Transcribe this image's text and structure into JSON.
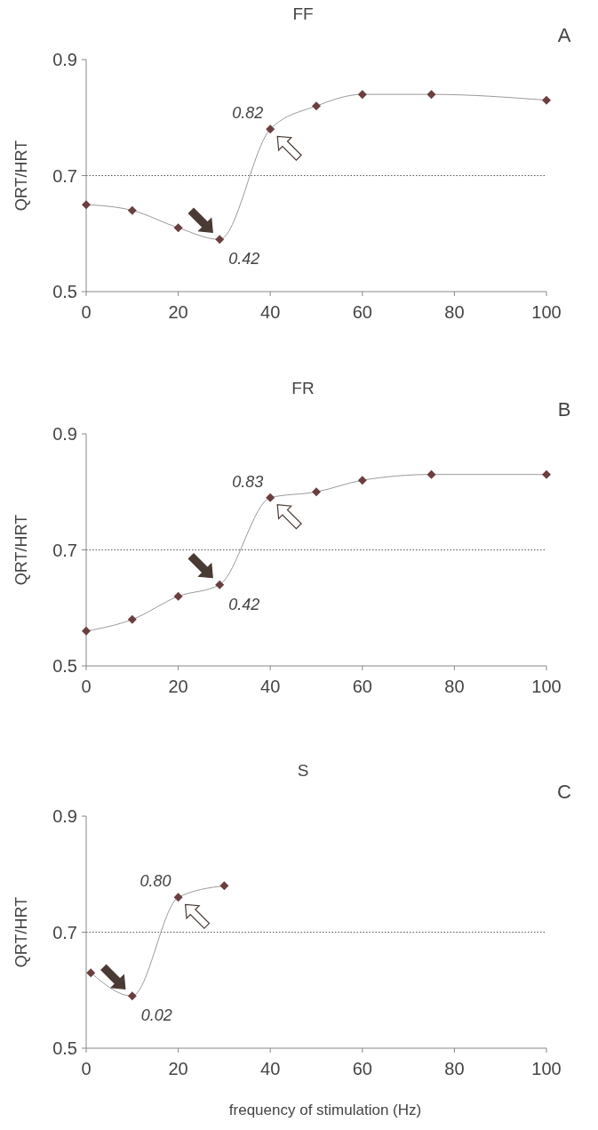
{
  "chart_data": [
    {
      "type": "line",
      "title": "FF",
      "ylabel": "QRT/HRT",
      "x": [
        0,
        10,
        20,
        29,
        40,
        50,
        60,
        75,
        100
      ],
      "series": [
        {
          "color": "#6b3f3f",
          "values": [
            0.65,
            0.64,
            0.61,
            0.59,
            0.78,
            0.82,
            0.84,
            0.84,
            0.83
          ]
        }
      ],
      "xlim": [
        0,
        100
      ],
      "xticks": [
        0,
        20,
        40,
        60,
        80,
        100
      ],
      "ylim": [
        0.5,
        0.9
      ],
      "yticks": [
        {
          "value": 0.5,
          "label": "0.5"
        },
        {
          "value": 0.7,
          "label": "0.7"
        },
        {
          "value": 0.9,
          "label": "0.9"
        }
      ],
      "marker": "diamond",
      "grid": false,
      "ref_lines": [
        {
          "axis": "y",
          "value": 0.7,
          "line_style": "dotted",
          "color": "#555555"
        }
      ],
      "annotations": [
        "A",
        {
          "text": "0.82",
          "x": 40,
          "y": 0.78
        },
        {
          "text": "0.42",
          "x": 29,
          "y": 0.59
        }
      ]
    },
    {
      "type": "line",
      "title": "FR",
      "ylabel": "QRT/HRT",
      "x": [
        0,
        10,
        20,
        29,
        40,
        50,
        60,
        75,
        100
      ],
      "series": [
        {
          "color": "#6b3f3f",
          "values": [
            0.56,
            0.58,
            0.62,
            0.64,
            0.79,
            0.8,
            0.82,
            0.83,
            0.83
          ]
        }
      ],
      "xlim": [
        0,
        100
      ],
      "xticks": [
        0,
        20,
        40,
        60,
        80,
        100
      ],
      "ylim": [
        0.5,
        0.9
      ],
      "yticks": [
        {
          "value": 0.5,
          "label": "0.5"
        },
        {
          "value": 0.7,
          "label": "0.7"
        },
        {
          "value": 0.9,
          "label": "0.9"
        }
      ],
      "marker": "diamond",
      "grid": false,
      "ref_lines": [
        {
          "axis": "y",
          "value": 0.7,
          "line_style": "dotted",
          "color": "#555555"
        }
      ],
      "annotations": [
        "B",
        {
          "text": "0.83",
          "x": 40,
          "y": 0.79
        },
        {
          "text": "0.42",
          "x": 29,
          "y": 0.64
        }
      ]
    },
    {
      "type": "line",
      "title": "S",
      "ylabel": "QRT/HRT",
      "xlabel": "frequency of stimulation (Hz)",
      "x": [
        1,
        10,
        20,
        30
      ],
      "series": [
        {
          "color": "#6b3f3f",
          "values": [
            0.63,
            0.59,
            0.76,
            0.78
          ]
        }
      ],
      "xlim": [
        0,
        100
      ],
      "xticks": [
        0,
        20,
        40,
        60,
        80,
        100
      ],
      "ylim": [
        0.5,
        0.9
      ],
      "yticks": [
        {
          "value": 0.5,
          "label": "0.5"
        },
        {
          "value": 0.7,
          "label": "0.7"
        },
        {
          "value": 0.9,
          "label": "0.9"
        }
      ],
      "marker": "diamond",
      "grid": false,
      "ref_lines": [
        {
          "axis": "y",
          "value": 0.7,
          "line_style": "dotted",
          "color": "#555555"
        }
      ],
      "annotations": [
        "C",
        {
          "text": "0.80",
          "x": 20,
          "y": 0.76
        },
        {
          "text": "0.02",
          "x": 10,
          "y": 0.59
        }
      ]
    }
  ]
}
